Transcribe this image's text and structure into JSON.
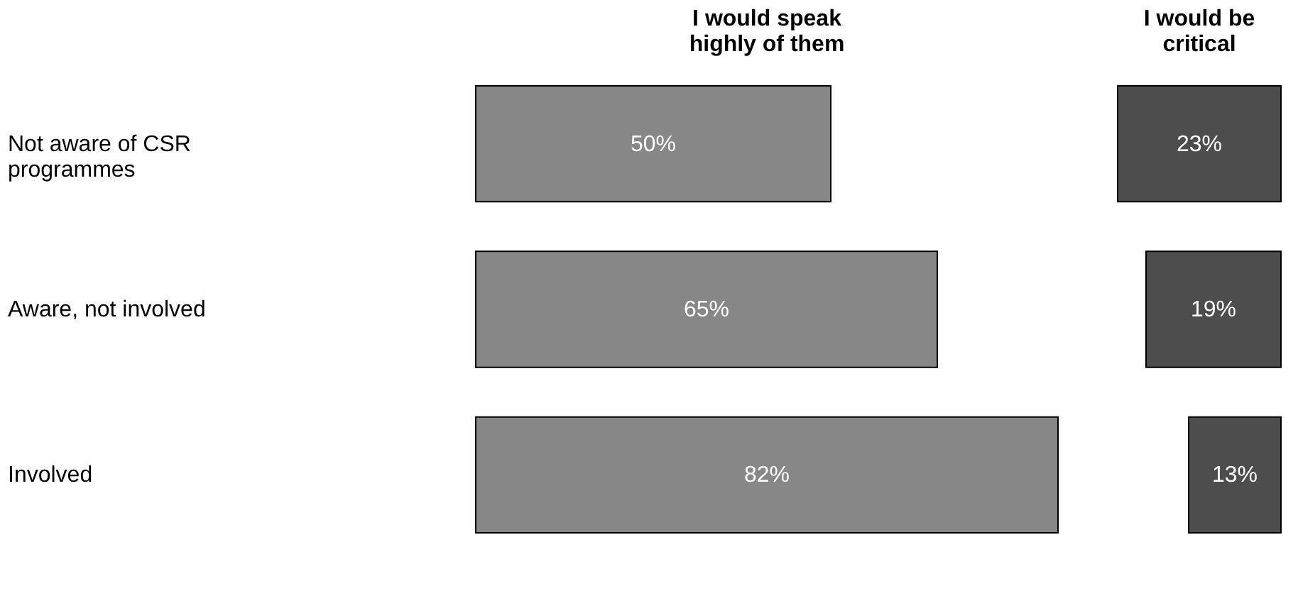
{
  "chart_data": [
    {
      "type": "bar",
      "orientation": "horizontal",
      "categories": [
        "Not aware of CSR programmes",
        "Aware, not involved",
        "Involved"
      ],
      "series": [
        {
          "name": "I would speak highly of them",
          "color": "#878787",
          "values": [
            50,
            65,
            82
          ],
          "value_labels": [
            "50%",
            "65%",
            "82%"
          ]
        }
      ],
      "tick_labels": "y"
    },
    {
      "type": "bar",
      "orientation": "horizontal",
      "series": [
        {
          "name": "I would be critical",
          "color": "#4d4d4d",
          "values": [
            23,
            19,
            13
          ],
          "value_labels": [
            "23%",
            "19%",
            "13%"
          ]
        }
      ],
      "xlim": [
        23,
        0
      ],
      "tick_labels": false
    }
  ]
}
